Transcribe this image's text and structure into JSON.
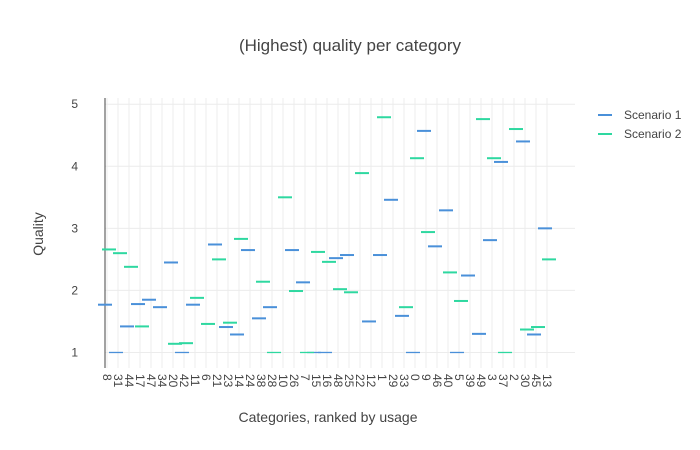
{
  "chart_data": {
    "type": "scatter",
    "marker": "horizontal-dash",
    "title": "(Highest) quality per category",
    "xlabel": "Categories, ranked by usage",
    "ylabel": "Quality",
    "ylim": [
      0.75,
      5.1
    ],
    "yticks": [
      1,
      2,
      3,
      4,
      5
    ],
    "grid": true,
    "legend_position": "top-right",
    "categories": [
      "8",
      "31",
      "44",
      "17",
      "47",
      "34",
      "20",
      "42",
      "11",
      "6",
      "21",
      "23",
      "14",
      "24",
      "38",
      "28",
      "10",
      "26",
      "7",
      "15",
      "16",
      "48",
      "25",
      "22",
      "12",
      "1",
      "29",
      "33",
      "0",
      "9",
      "46",
      "40",
      "5",
      "39",
      "49",
      "3",
      "37",
      "2",
      "30",
      "45",
      "13"
    ],
    "series": [
      {
        "name": "Scenario 1",
        "color": "#4a90d9",
        "values": [
          1.77,
          1.0,
          1.42,
          1.78,
          1.85,
          1.73,
          2.45,
          1.0,
          1.77,
          null,
          2.74,
          1.41,
          1.29,
          2.65,
          1.55,
          1.73,
          null,
          2.65,
          2.13,
          1.0,
          1.0,
          2.52,
          2.57,
          null,
          1.5,
          2.57,
          3.46,
          1.59,
          1.0,
          4.57,
          2.71,
          3.29,
          1.0,
          2.24,
          1.3,
          2.81,
          4.07,
          null,
          4.4,
          1.29,
          3.0
        ]
      },
      {
        "name": "Scenario 2",
        "color": "#2ed8a0",
        "values": [
          2.66,
          2.6,
          2.38,
          1.42,
          null,
          null,
          1.14,
          1.15,
          1.88,
          1.46,
          2.5,
          1.48,
          2.83,
          null,
          2.14,
          1.0,
          3.5,
          1.99,
          1.0,
          2.62,
          2.46,
          2.02,
          1.97,
          3.89,
          null,
          4.79,
          null,
          1.73,
          4.13,
          2.94,
          null,
          2.29,
          1.83,
          null,
          4.76,
          4.13,
          1.0,
          4.6,
          1.37,
          1.41,
          2.5
        ]
      }
    ]
  }
}
